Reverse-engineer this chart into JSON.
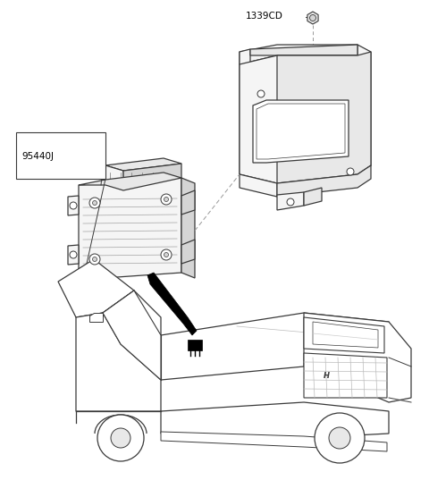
{
  "background_color": "#ffffff",
  "label_1339CD": "1339CD",
  "label_95440J": "95440J",
  "fig_width": 4.8,
  "fig_height": 5.56,
  "dpi": 100,
  "line_color": "#3a3a3a",
  "dashed_color": "#999999",
  "text_color": "#000000",
  "fill_light": "#f5f5f5",
  "fill_mid": "#e8e8e8",
  "fill_dark": "#d5d5d5"
}
